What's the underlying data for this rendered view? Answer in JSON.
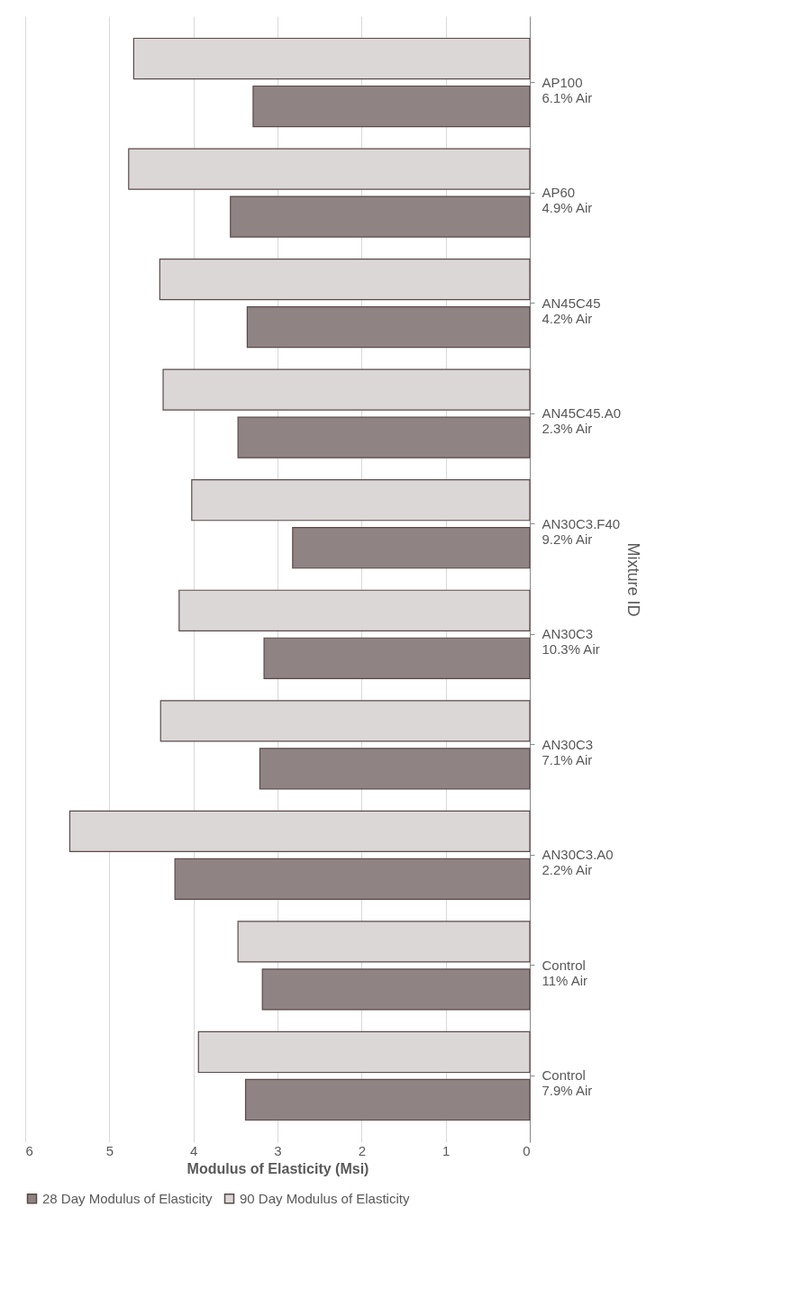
{
  "chart_data": {
    "type": "bar",
    "orientation": "horizontal",
    "xlabel": "Modulus of Elasticity (Msi)",
    "ylabel": "Mixture ID",
    "categories": [
      "AP100\n6.1% Air",
      "AP60\n4.9% Air",
      "AN45C45\n4.2% Air",
      "AN45C45.A0\n2.3% Air",
      "AN30C3.F40\n9.2% Air",
      "AN30C3\n10.3% Air",
      "AN30C3\n7.1% Air",
      "AN30C3.A0\n2.2% Air",
      "Control\n11% Air",
      "Control\n7.9% Air"
    ],
    "series": [
      {
        "name": "28 Day Modulus of Elasticity",
        "color": "#8f8383",
        "values": [
          3.29,
          3.56,
          3.36,
          3.47,
          2.82,
          3.16,
          3.21,
          4.22,
          3.18,
          3.38
        ]
      },
      {
        "name": "90 Day Modulus of Elasticity",
        "color": "#dcd7d7",
        "values": [
          4.71,
          4.77,
          4.4,
          4.36,
          4.02,
          4.17,
          4.39,
          5.47,
          3.47,
          3.94
        ]
      }
    ],
    "xlim": [
      6,
      0
    ],
    "xticks": [
      0,
      1,
      2,
      3,
      4,
      5,
      6
    ],
    "grid": "x",
    "legend": "bottom"
  }
}
